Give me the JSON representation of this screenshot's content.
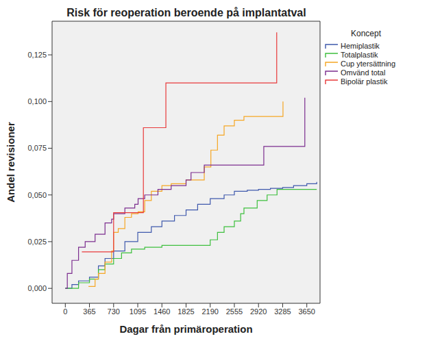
{
  "chart_data": {
    "type": "line",
    "title": "Risk för reoperation beroende på implantatval",
    "x_label": "Dagar från primäroperation",
    "y_label": "Andel revisioner",
    "legend_title": "Koncept",
    "legend": "right",
    "line_style": "step",
    "grid": false,
    "xlim": [
      -200,
      3850
    ],
    "ylim": [
      -0.008,
      0.143
    ],
    "xticks": [
      0,
      365,
      730,
      1095,
      1460,
      1825,
      2190,
      2555,
      2920,
      3285,
      3650
    ],
    "yticks": [
      {
        "value": 0,
        "label": "0,000"
      },
      {
        "value": 0.025,
        "label": "0,025"
      },
      {
        "value": 0.05,
        "label": "0,050"
      },
      {
        "value": 0.075,
        "label": "0,075"
      },
      {
        "value": 0.1,
        "label": "0,100"
      },
      {
        "value": 0.125,
        "label": "0,125"
      }
    ],
    "series": [
      {
        "name": "Hemiplastik",
        "color": "#3E58AC",
        "x": [
          0,
          100,
          200,
          365,
          500,
          600,
          730,
          900,
          1095,
          1300,
          1460,
          1650,
          1825,
          2000,
          2190,
          2400,
          2555,
          2750,
          2920,
          3100,
          3285,
          3450,
          3650,
          3800
        ],
        "values": [
          0,
          0.002,
          0.004,
          0.006,
          0.012,
          0.016,
          0.02,
          0.025,
          0.03,
          0.033,
          0.036,
          0.039,
          0.042,
          0.045,
          0.048,
          0.05,
          0.052,
          0.0525,
          0.053,
          0.0535,
          0.054,
          0.055,
          0.056,
          0.057
        ]
      },
      {
        "name": "Totalplastik",
        "color": "#3CBF3C",
        "x": [
          0,
          200,
          365,
          500,
          600,
          730,
          850,
          1000,
          1200,
          1460,
          2100,
          2190,
          2300,
          2400,
          2555,
          2650,
          2700,
          2900,
          3050,
          3200,
          3800
        ],
        "values": [
          0,
          0.003,
          0.005,
          0.01,
          0.013,
          0.016,
          0.019,
          0.021,
          0.022,
          0.023,
          0.023,
          0.026,
          0.03,
          0.033,
          0.036,
          0.04,
          0.043,
          0.047,
          0.05,
          0.053,
          0.053
        ]
      },
      {
        "name": "Cup ytersättning",
        "color": "#F5A623",
        "x": [
          350,
          450,
          500,
          600,
          700,
          730,
          800,
          900,
          1000,
          1100,
          1200,
          1300,
          1460,
          1600,
          1825,
          2000,
          2100,
          2200,
          2300,
          2400,
          2555,
          2700,
          3270,
          3290
        ],
        "values": [
          0.001,
          0.005,
          0.008,
          0.014,
          0.02,
          0.03,
          0.032,
          0.038,
          0.04,
          0.041,
          0.047,
          0.052,
          0.055,
          0.056,
          0.058,
          0.058,
          0.065,
          0.074,
          0.082,
          0.087,
          0.09,
          0.092,
          0.092,
          0.1
        ]
      },
      {
        "name": "Omvänd total",
        "color": "#7B2C8E",
        "x": [
          0,
          30,
          100,
          200,
          300,
          450,
          600,
          700,
          730,
          900,
          1050,
          1100,
          1200,
          1400,
          1600,
          1825,
          1900,
          2100,
          2950,
          3000,
          3620
        ],
        "values": [
          0,
          0.008,
          0.015,
          0.022,
          0.025,
          0.029,
          0.035,
          0.037,
          0.04,
          0.043,
          0.045,
          0.048,
          0.05,
          0.053,
          0.055,
          0.058,
          0.062,
          0.066,
          0.066,
          0.076,
          0.102
        ]
      },
      {
        "name": "Bipolär plastik",
        "color": "#E8393A",
        "x": [
          250,
          730,
          1180,
          1520,
          3195
        ],
        "values": [
          0.0195,
          0.0405,
          0.086,
          0.11,
          0.137
        ]
      }
    ]
  }
}
